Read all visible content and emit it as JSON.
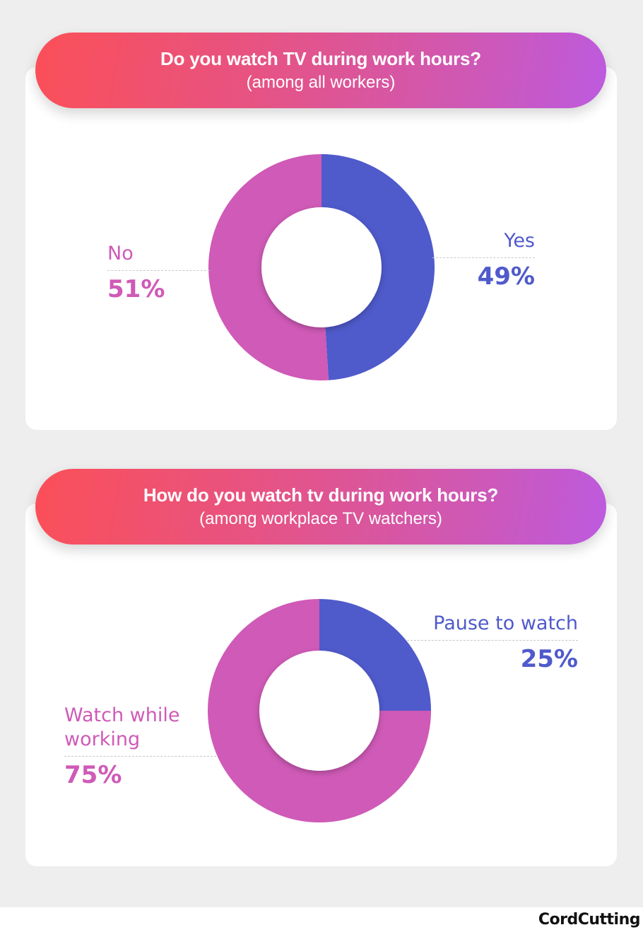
{
  "colors": {
    "yes_blue": "#4f5acb",
    "no_pink": "#cf5ab7",
    "gradient_start": "#fb4f58",
    "gradient_end": "#bd5adf",
    "background": "#eeeeee"
  },
  "panel1": {
    "question": "Do you watch TV during work hours?",
    "subtitle": "(among all workers)",
    "labels": {
      "yes_name": "Yes",
      "yes_pct": "49%",
      "no_name": "No",
      "no_pct": "51%"
    }
  },
  "panel2": {
    "question": "How do you watch tv during work hours?",
    "subtitle": "(among workplace TV watchers)",
    "labels": {
      "pause_name": "Pause to watch",
      "pause_pct": "25%",
      "while_name_line1": "Watch while",
      "while_name_line2": "working",
      "while_pct": "75%"
    }
  },
  "footer": {
    "brand": "CordCutting"
  },
  "chart_data": [
    {
      "type": "pie",
      "title": "Do you watch TV during work hours?",
      "subtitle": "(among all workers)",
      "categories": [
        "Yes",
        "No"
      ],
      "values": [
        49,
        51
      ],
      "colors": [
        "#4f5acb",
        "#cf5ab7"
      ],
      "unit": "%",
      "donut": true
    },
    {
      "type": "pie",
      "title": "How do you watch tv during work hours?",
      "subtitle": "(among workplace TV watchers)",
      "categories": [
        "Pause to watch",
        "Watch while working"
      ],
      "values": [
        25,
        75
      ],
      "colors": [
        "#4f5acb",
        "#cf5ab7"
      ],
      "unit": "%",
      "donut": true
    }
  ]
}
